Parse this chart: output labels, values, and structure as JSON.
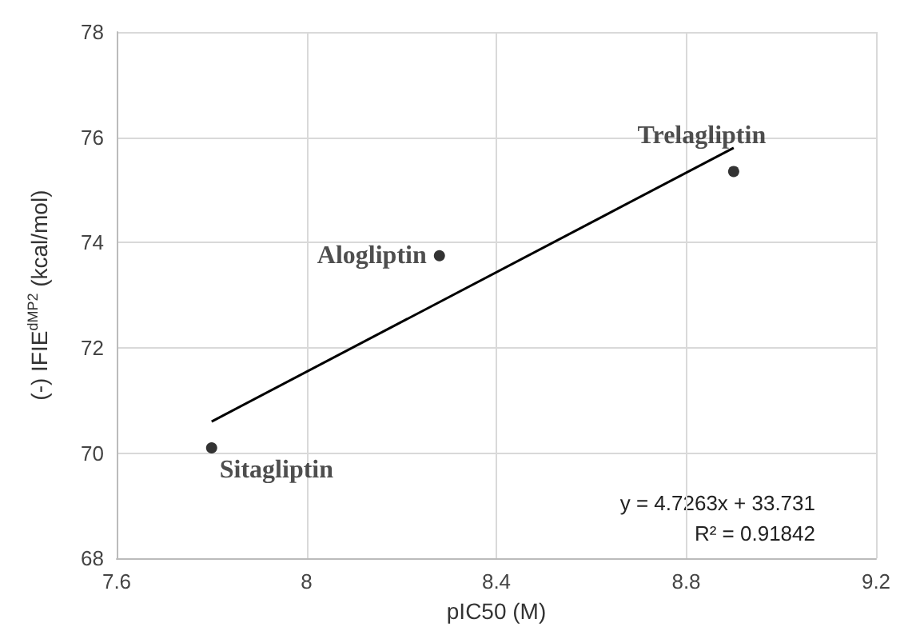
{
  "chart_data": {
    "type": "scatter",
    "xlabel": "pIC50 (M)",
    "ylabel": "(-) IFIE$^{dMP2}$ (kcal/mol)",
    "xlim": [
      7.6,
      9.2
    ],
    "xticks": [
      7.6,
      8,
      8.4,
      8.8,
      9.2
    ],
    "ylim": [
      68,
      78
    ],
    "yticks": [
      68,
      70,
      72,
      74,
      76,
      78
    ],
    "grid": true,
    "marker": "circle",
    "series": [
      {
        "color": "#000000",
        "x": [
          7.8,
          8.28,
          8.9
        ],
        "values": [
          70.1,
          73.75,
          75.35
        ]
      },
      {
        "type": "line",
        "color": "#000000",
        "x": [
          7.8,
          8.9
        ],
        "values": [
          70.6,
          75.8
        ],
        "marker": "none",
        "line_style": "solid"
      }
    ],
    "annotations": [
      {
        "text": "Sitagliptin",
        "x": 7.8,
        "y": 70.1
      },
      {
        "text": "Alogliptin",
        "x": 8.28,
        "y": 73.75
      },
      {
        "text": "Trelagliptin",
        "x": 8.9,
        "y": 75.35
      },
      "y = 4.7263x + 33.731",
      "R² = 0.91842"
    ]
  }
}
